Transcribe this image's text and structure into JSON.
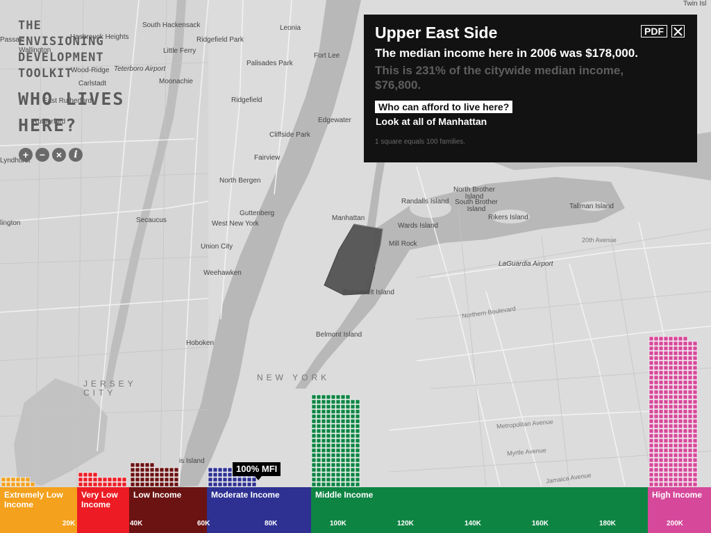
{
  "brand": {
    "line1": "THE",
    "line2": "ENVISIONING",
    "line3": "DEVELOPMENT",
    "line4": "TOOLKIT",
    "title1": "WHO LIVES",
    "title2": "HERE?"
  },
  "controls": [
    {
      "icon": "zoom-in-icon",
      "glyph": "+"
    },
    {
      "icon": "zoom-out-icon",
      "glyph": "−"
    },
    {
      "icon": "reset-icon",
      "glyph": "×"
    },
    {
      "icon": "info-icon",
      "glyph": "i"
    }
  ],
  "panel": {
    "title": "Upper East Side",
    "pdf_label": "PDF",
    "median": "The median income here in 2006 was $178,000.",
    "pct": "This is 231% of the citywide median income, $76,800.",
    "afford_button": "Who can afford to live here?",
    "manhattan_link": "Look at all of Manhattan",
    "note": "1 square equals 100 families."
  },
  "map_labels": {
    "south_hackensack": "South Hackensack",
    "ridgefield_park": "Ridgefield Park",
    "leonia": "Leonia",
    "hasbrouck": "Hasbrouck Heights",
    "little_ferry": "Little Ferry",
    "wallington": "Wallington",
    "wood_ridge": "Wood-Ridge",
    "teterboro": "Teterboro Airport",
    "moonachie": "Moonachie",
    "carlstadt": "Carlstadt",
    "palisades_park": "Palisades Park",
    "fort_lee": "Fort Lee",
    "ridgefield": "Ridgefield",
    "east_rutherford": "East Rutherford",
    "rutherford": "Rutherford",
    "edgewater": "Edgewater",
    "cliffside_park": "Cliffside Park",
    "fairview": "Fairview",
    "lyndhurst": "Lyndhurst",
    "north_bergen": "North Bergen",
    "guttenberg": "Guttenberg",
    "secaucus": "Secaucus",
    "west_new_york": "West New York",
    "union_city": "Union City",
    "weehawken": "Weehawken",
    "hoboken": "Hoboken",
    "jersey_city": "JERSEY CITY",
    "new_york": "NEW YORK",
    "manhattan": "Manhattan",
    "wards_island": "Wards Island",
    "randalls_island": "Randalls Island",
    "north_brother": "North Brother Island",
    "south_brother": "South Brother Island",
    "rikers_island": "Rikers Island",
    "tallman_island": "Tallman Island",
    "laguardia": "LaGuardia Airport",
    "mill_rock": "Mill Rock",
    "roosevelt_island": "Roosevelt Island",
    "belmont_island": "Belmont Island",
    "twin_islands": "Twin Isl",
    "passaic": "Passaic",
    "lington": "lington",
    "ellis_island": "is Island",
    "twentieth_ave": "20th Avenue",
    "northern_blvd": "Northern Boulevard",
    "metropolitan_ave": "Metropolitan Avenue",
    "myrtle_ave": "Myrtle Avenue",
    "jamaica_ave": "Jamaica Avenue"
  },
  "income_bands": [
    {
      "label": "Extremely Low Income",
      "color": "#f4a11d",
      "families_squares": 13
    },
    {
      "label": "Very Low Income",
      "color": "#ed1c24",
      "families_squares": 24
    },
    {
      "label": "Low Income",
      "color": "#6b1212",
      "families_squares": 45
    },
    {
      "label": "Moderate Income",
      "color": "#2e3192",
      "families_squares": 38
    },
    {
      "label": "Middle Income",
      "color": "#0e8443",
      "families_squares": 188
    },
    {
      "label": "High Income",
      "color": "#d6489a",
      "families_squares": 308
    }
  ],
  "axis_ticks": [
    "20K",
    "40K",
    "60K",
    "80K",
    "100K",
    "120K",
    "140K",
    "160K",
    "180K",
    "200K"
  ],
  "mfi_marker": "100% MFI",
  "mfi_value": 76800
}
